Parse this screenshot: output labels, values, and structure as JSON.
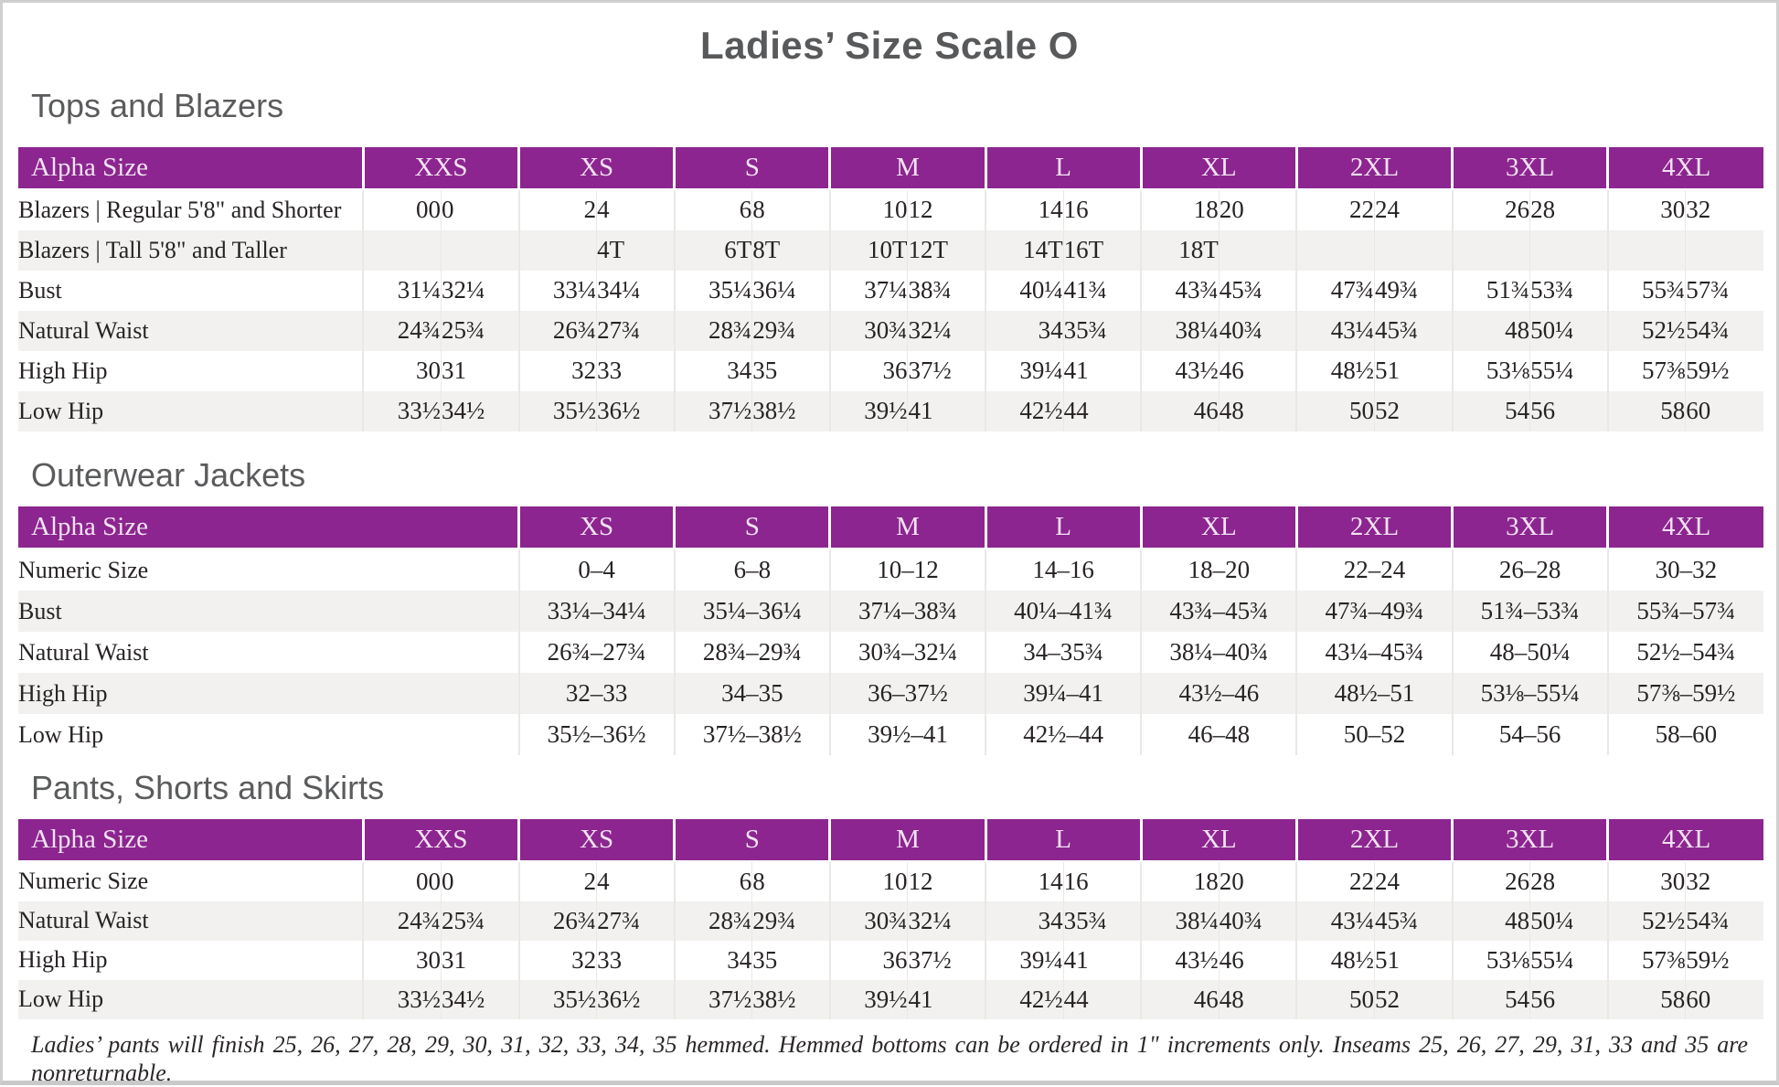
{
  "title": "Ladies’ Size Scale O",
  "colors": {
    "header_purple": "#8c2590",
    "header_text": "#f2e2f2",
    "row_stripe": "#f2f1ef",
    "heading_gray": "#58595b",
    "body_text": "#272324",
    "frame_gray": "#cfcfcf"
  },
  "tables": [
    {
      "name": "tops-and-blazers",
      "heading": "Tops and Blazers",
      "split": true,
      "label_header": "Alpha Size",
      "groups": [
        "XXS",
        "XS",
        "S",
        "M",
        "L",
        "XL",
        "2XL",
        "3XL",
        "4XL"
      ],
      "rows": [
        {
          "label": "Blazers | Regular 5'8\" and Shorter",
          "values": [
            [
              "00",
              "0"
            ],
            [
              "2",
              "4"
            ],
            [
              "6",
              "8"
            ],
            [
              "10",
              "12"
            ],
            [
              "14",
              "16"
            ],
            [
              "18",
              "20"
            ],
            [
              "22",
              "24"
            ],
            [
              "26",
              "28"
            ],
            [
              "30",
              "32"
            ]
          ]
        },
        {
          "label": "Blazers | Tall 5'8\" and Taller",
          "values": [
            [
              "",
              ""
            ],
            [
              "",
              "4T"
            ],
            [
              "6T",
              "8T"
            ],
            [
              "10T",
              "12T"
            ],
            [
              "14T",
              "16T"
            ],
            [
              "18T",
              ""
            ],
            [
              "",
              ""
            ],
            [
              "",
              ""
            ],
            [
              "",
              ""
            ]
          ]
        },
        {
          "label": "Bust",
          "values": [
            [
              "31¼",
              "32¼"
            ],
            [
              "33¼",
              "34¼"
            ],
            [
              "35¼",
              "36¼"
            ],
            [
              "37¼",
              "38¾"
            ],
            [
              "40¼",
              "41¾"
            ],
            [
              "43¾",
              "45¾"
            ],
            [
              "47¾",
              "49¾"
            ],
            [
              "51¾",
              "53¾"
            ],
            [
              "55¾",
              "57¾"
            ]
          ]
        },
        {
          "label": "Natural Waist",
          "values": [
            [
              "24¾",
              "25¾"
            ],
            [
              "26¾",
              "27¾"
            ],
            [
              "28¾",
              "29¾"
            ],
            [
              "30¾",
              "32¼"
            ],
            [
              "34",
              "35¾"
            ],
            [
              "38¼",
              "40¾"
            ],
            [
              "43¼",
              "45¾"
            ],
            [
              "48",
              "50¼"
            ],
            [
              "52½",
              "54¾"
            ]
          ]
        },
        {
          "label": "High Hip",
          "values": [
            [
              "30",
              "31"
            ],
            [
              "32",
              "33"
            ],
            [
              "34",
              "35"
            ],
            [
              "36",
              "37½"
            ],
            [
              "39¼",
              "41"
            ],
            [
              "43½",
              "46"
            ],
            [
              "48½",
              "51"
            ],
            [
              "53⅛",
              "55¼"
            ],
            [
              "57⅜",
              "59½"
            ]
          ]
        },
        {
          "label": "Low Hip",
          "values": [
            [
              "33½",
              "34½"
            ],
            [
              "35½",
              "36½"
            ],
            [
              "37½",
              "38½"
            ],
            [
              "39½",
              "41"
            ],
            [
              "42½",
              "44"
            ],
            [
              "46",
              "48"
            ],
            [
              "50",
              "52"
            ],
            [
              "54",
              "56"
            ],
            [
              "58",
              "60"
            ]
          ]
        }
      ]
    },
    {
      "name": "outerwear-jackets",
      "heading": "Outerwear Jackets",
      "split": false,
      "label_header": "Alpha Size",
      "groups": [
        "XS",
        "S",
        "M",
        "L",
        "XL",
        "2XL",
        "3XL",
        "4XL"
      ],
      "rows": [
        {
          "label": "Numeric Size",
          "values": [
            "0–4",
            "6–8",
            "10–12",
            "14–16",
            "18–20",
            "22–24",
            "26–28",
            "30–32"
          ]
        },
        {
          "label": "Bust",
          "values": [
            "33¼–34¼",
            "35¼–36¼",
            "37¼–38¾",
            "40¼–41¾",
            "43¾–45¾",
            "47¾–49¾",
            "51¾–53¾",
            "55¾–57¾"
          ]
        },
        {
          "label": "Natural Waist",
          "values": [
            "26¾–27¾",
            "28¾–29¾",
            "30¾–32¼",
            "34–35¾",
            "38¼–40¾",
            "43¼–45¾",
            "48–50¼",
            "52½–54¾"
          ]
        },
        {
          "label": "High Hip",
          "values": [
            "32–33",
            "34–35",
            "36–37½",
            "39¼–41",
            "43½–46",
            "48½–51",
            "53⅛–55¼",
            "57⅜–59½"
          ]
        },
        {
          "label": "Low Hip",
          "values": [
            "35½–36½",
            "37½–38½",
            "39½–41",
            "42½–44",
            "46–48",
            "50–52",
            "54–56",
            "58–60"
          ]
        }
      ]
    },
    {
      "name": "pants-shorts-and-skirts",
      "heading": "Pants, Shorts and Skirts",
      "split": true,
      "label_header": "Alpha Size",
      "groups": [
        "XXS",
        "XS",
        "S",
        "M",
        "L",
        "XL",
        "2XL",
        "3XL",
        "4XL"
      ],
      "rows": [
        {
          "label": "Numeric Size",
          "values": [
            [
              "00",
              "0"
            ],
            [
              "2",
              "4"
            ],
            [
              "6",
              "8"
            ],
            [
              "10",
              "12"
            ],
            [
              "14",
              "16"
            ],
            [
              "18",
              "20"
            ],
            [
              "22",
              "24"
            ],
            [
              "26",
              "28"
            ],
            [
              "30",
              "32"
            ]
          ]
        },
        {
          "label": "Natural Waist",
          "values": [
            [
              "24¾",
              "25¾"
            ],
            [
              "26¾",
              "27¾"
            ],
            [
              "28¾",
              "29¾"
            ],
            [
              "30¾",
              "32¼"
            ],
            [
              "34",
              "35¾"
            ],
            [
              "38¼",
              "40¾"
            ],
            [
              "43¼",
              "45¾"
            ],
            [
              "48",
              "50¼"
            ],
            [
              "52½",
              "54¾"
            ]
          ]
        },
        {
          "label": "High Hip",
          "values": [
            [
              "30",
              "31"
            ],
            [
              "32",
              "33"
            ],
            [
              "34",
              "35"
            ],
            [
              "36",
              "37½"
            ],
            [
              "39¼",
              "41"
            ],
            [
              "43½",
              "46"
            ],
            [
              "48½",
              "51"
            ],
            [
              "53⅛",
              "55¼"
            ],
            [
              "57⅜",
              "59½"
            ]
          ]
        },
        {
          "label": "Low Hip",
          "values": [
            [
              "33½",
              "34½"
            ],
            [
              "35½",
              "36½"
            ],
            [
              "37½",
              "38½"
            ],
            [
              "39½",
              "41"
            ],
            [
              "42½",
              "44"
            ],
            [
              "46",
              "48"
            ],
            [
              "50",
              "52"
            ],
            [
              "54",
              "56"
            ],
            [
              "58",
              "60"
            ]
          ]
        }
      ]
    }
  ],
  "footnote": "Ladies’ pants will finish 25, 26, 27, 28, 29, 30, 31, 32, 33, 34, 35 hemmed. Hemmed bottoms can be ordered in 1\" increments only. Inseams 25, 26, 27, 29, 31, 33 and 35 are nonreturnable."
}
